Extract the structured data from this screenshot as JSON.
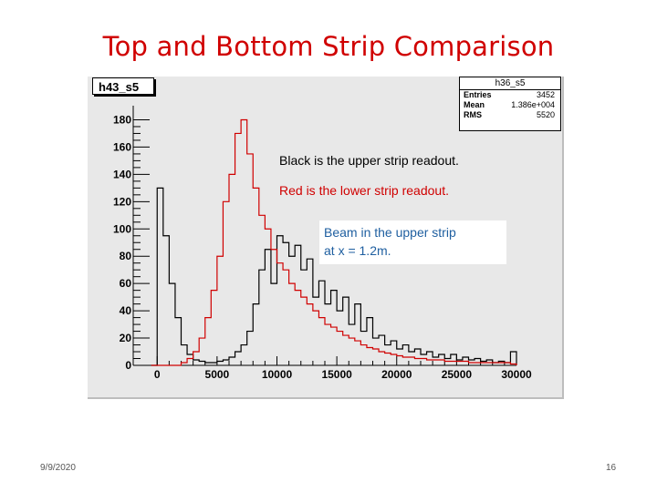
{
  "slide": {
    "title": "Top and Bottom Strip Comparison",
    "date": "9/9/2020",
    "page": "16"
  },
  "hist_name": "h43_s5",
  "stats_box": {
    "name": "h36_s5",
    "rows": [
      {
        "key": "Entries",
        "value": "3452"
      },
      {
        "key": "Mean",
        "value": "1.386e+004"
      },
      {
        "key": "RMS",
        "value": "5520"
      }
    ]
  },
  "notes": {
    "black": "Black is the upper strip readout.",
    "red": "Red is the lower strip readout.",
    "beam_line1": "Beam in the upper strip",
    "beam_line2": "at  x = 1.2m."
  },
  "colors": {
    "title": "#d00000",
    "upper": "#000000",
    "lower": "#d00000",
    "beam_note": "#1f5fa0",
    "pad": "#e8e8e8"
  },
  "chart_data": {
    "type": "bar",
    "style": "step-histogram",
    "title": "",
    "xlabel": "",
    "ylabel": "",
    "xlim": [
      -2000,
      30000
    ],
    "ylim": [
      0,
      185
    ],
    "xticks": [
      0,
      5000,
      10000,
      15000,
      20000,
      25000,
      30000
    ],
    "yticks": [
      0,
      20,
      40,
      60,
      80,
      100,
      120,
      140,
      160,
      180
    ],
    "grid": false,
    "series": [
      {
        "color": "#000000",
        "x": [
          -500,
          0,
          500,
          1000,
          1500,
          2000,
          2500,
          3000,
          3500,
          4000,
          4500,
          5000,
          5500,
          6000,
          6500,
          7000,
          7500,
          8000,
          8500,
          9000,
          9500,
          10000,
          10500,
          11000,
          11500,
          12000,
          12500,
          13000,
          13500,
          14000,
          14500,
          15000,
          15500,
          16000,
          16500,
          17000,
          17500,
          18000,
          18500,
          19000,
          19500,
          20000,
          20500,
          21000,
          21500,
          22000,
          22500,
          23000,
          23500,
          24000,
          24500,
          25000,
          25500,
          26000,
          26500,
          27000,
          27500,
          28000,
          28500,
          29000,
          29500
        ],
        "values": [
          0,
          130,
          95,
          60,
          35,
          15,
          8,
          4,
          3,
          2,
          2,
          3,
          4,
          6,
          10,
          15,
          25,
          45,
          70,
          85,
          60,
          95,
          90,
          80,
          88,
          70,
          78,
          50,
          62,
          45,
          55,
          40,
          50,
          30,
          45,
          25,
          35,
          20,
          22,
          15,
          18,
          12,
          15,
          10,
          12,
          8,
          10,
          6,
          8,
          5,
          8,
          4,
          6,
          4,
          5,
          3,
          4,
          2,
          3,
          2,
          10
        ]
      },
      {
        "color": "#d00000",
        "x": [
          -500,
          0,
          500,
          1000,
          1500,
          2000,
          2500,
          3000,
          3500,
          4000,
          4500,
          5000,
          5500,
          6000,
          6500,
          7000,
          7500,
          8000,
          8500,
          9000,
          9500,
          10000,
          10500,
          11000,
          11500,
          12000,
          12500,
          13000,
          13500,
          14000,
          14500,
          15000,
          15500,
          16000,
          16500,
          17000,
          17500,
          18000,
          18500,
          19000,
          19500,
          20000,
          20500,
          21000,
          21500,
          22000,
          22500,
          23000,
          23500,
          24000,
          24500,
          25000,
          25500,
          26000,
          26500,
          27000,
          27500,
          28000,
          28500,
          29000,
          29500
        ],
        "values": [
          0,
          0,
          0,
          0,
          0,
          2,
          5,
          10,
          20,
          35,
          55,
          80,
          120,
          140,
          170,
          180,
          155,
          130,
          110,
          100,
          85,
          75,
          70,
          60,
          55,
          50,
          45,
          40,
          35,
          30,
          28,
          25,
          22,
          20,
          18,
          15,
          13,
          12,
          10,
          9,
          8,
          7,
          6,
          6,
          5,
          5,
          4,
          4,
          4,
          3,
          3,
          3,
          3,
          2,
          2,
          2,
          2,
          2,
          2,
          2,
          1
        ]
      }
    ]
  }
}
